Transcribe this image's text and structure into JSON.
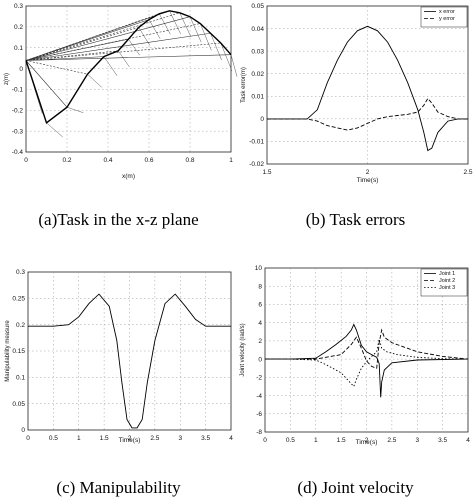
{
  "captions": {
    "a": "(a)Task in the x-z plane",
    "b": "(b) Task errors",
    "c": "(c) Manipulability",
    "d": "(d) Joint velocity"
  },
  "chart_data": [
    {
      "id": "a",
      "type": "line",
      "title": "",
      "xlabel": "x(m)",
      "ylabel": "z(m)",
      "xlim": [
        0,
        1
      ],
      "ylim": [
        -0.45,
        0.3
      ],
      "xticks": [
        "0",
        "0.2",
        "0.4",
        "0.6",
        "0.8",
        "1"
      ],
      "yticks": [
        "0.3",
        "0.2",
        "0.1",
        "0",
        "-0.1",
        "-0.2",
        "-0.3",
        "-0.4"
      ],
      "grid": true,
      "series": [
        {
          "values_x": [
            0,
            0.1,
            0.2,
            0.3,
            0.38,
            0.45,
            0.5,
            0.55,
            0.6,
            0.65,
            0.7,
            0.75,
            0.8,
            0.85,
            0.9,
            0.95,
            1.0
          ],
          "values_y": [
            0.02,
            -0.3,
            -0.22,
            -0.05,
            0.04,
            0.07,
            0.13,
            0.19,
            0.23,
            0.26,
            0.275,
            0.265,
            0.245,
            0.21,
            0.16,
            0.11,
            0.05
          ]
        }
      ]
    },
    {
      "id": "b",
      "type": "line",
      "title": "",
      "xlabel": "Time(s)",
      "ylabel": "Task error(m)",
      "xlim": [
        1.5,
        2.5
      ],
      "ylim": [
        -0.02,
        0.05
      ],
      "xticks": [
        "1.5",
        "2",
        "2.5"
      ],
      "yticks": [
        "0.05",
        "0.04",
        "0.03",
        "0.02",
        "0.01",
        "0",
        "-0.01",
        "-0.02"
      ],
      "grid": true,
      "legend": "top-right",
      "series": [
        {
          "name": "x error",
          "x": [
            1.5,
            1.7,
            1.75,
            1.8,
            1.85,
            1.9,
            1.95,
            2.0,
            2.05,
            2.1,
            2.15,
            2.2,
            2.25,
            2.28,
            2.3,
            2.32,
            2.35,
            2.4,
            2.45,
            2.5
          ],
          "y": [
            0,
            0,
            0.004,
            0.016,
            0.026,
            0.034,
            0.039,
            0.041,
            0.039,
            0.034,
            0.026,
            0.016,
            0.004,
            -0.006,
            -0.014,
            -0.013,
            -0.006,
            -0.001,
            0,
            0
          ]
        },
        {
          "name": "y error",
          "x": [
            1.5,
            1.7,
            1.75,
            1.8,
            1.85,
            1.9,
            1.95,
            2.0,
            2.05,
            2.1,
            2.15,
            2.2,
            2.25,
            2.28,
            2.3,
            2.32,
            2.35,
            2.4,
            2.45,
            2.5
          ],
          "y": [
            0,
            0,
            -0.001,
            -0.003,
            -0.004,
            -0.005,
            -0.004,
            -0.002,
            0,
            0.001,
            0.0015,
            0.002,
            0.003,
            0.006,
            0.009,
            0.007,
            0.003,
            0.001,
            0,
            0
          ]
        }
      ]
    },
    {
      "id": "c",
      "type": "line",
      "title": "",
      "xlabel": "Time(s)",
      "ylabel": "Manipulability measure",
      "xlim": [
        0,
        4
      ],
      "ylim": [
        0,
        0.3
      ],
      "xticks": [
        "0",
        "0.5",
        "1",
        "1.5",
        "2",
        "2.5",
        "3",
        "3.5",
        "4"
      ],
      "yticks": [
        "0.3",
        "0.25",
        "0.2",
        "0.15",
        "0.1",
        "0.05",
        "0"
      ],
      "grid": true,
      "series": [
        {
          "x": [
            0,
            0.5,
            0.8,
            1.0,
            1.2,
            1.4,
            1.6,
            1.75,
            1.85,
            1.95,
            2.05,
            2.15,
            2.25,
            2.35,
            2.5,
            2.7,
            2.9,
            3.1,
            3.3,
            3.5,
            4.0
          ],
          "y": [
            0.197,
            0.197,
            0.2,
            0.215,
            0.24,
            0.258,
            0.235,
            0.17,
            0.09,
            0.02,
            0.004,
            0.004,
            0.02,
            0.09,
            0.17,
            0.24,
            0.258,
            0.235,
            0.21,
            0.197,
            0.197
          ]
        }
      ]
    },
    {
      "id": "d",
      "type": "line",
      "title": "",
      "xlabel": "Time(s)",
      "ylabel": "Joint velocity (rad/s)",
      "xlim": [
        0,
        4
      ],
      "ylim": [
        -8,
        10
      ],
      "xticks": [
        "0",
        "0.5",
        "1",
        "1.5",
        "2",
        "2.5",
        "3",
        "3.5",
        "4"
      ],
      "yticks": [
        "10",
        "8",
        "6",
        "4",
        "2",
        "0",
        "-2",
        "-4",
        "-6",
        "-8"
      ],
      "grid": true,
      "legend": "top-right",
      "series": [
        {
          "name": "Joint 1",
          "x": [
            0,
            0.5,
            1.0,
            1.2,
            1.4,
            1.6,
            1.7,
            1.75,
            1.8,
            1.9,
            2.0,
            2.1,
            2.2,
            2.25,
            2.28,
            2.3,
            2.35,
            2.5,
            3.0,
            4.0
          ],
          "y": [
            0,
            0,
            0.1,
            0.8,
            1.6,
            2.5,
            3.2,
            3.8,
            3.2,
            1.5,
            0.8,
            0.5,
            0.2,
            -0.5,
            -4.2,
            -2.5,
            -1.2,
            -0.4,
            -0.1,
            0
          ]
        },
        {
          "name": "Joint 2",
          "x": [
            0,
            0.5,
            1.0,
            1.5,
            1.7,
            1.8,
            1.9,
            2.0,
            2.1,
            2.2,
            2.25,
            2.3,
            2.35,
            2.5,
            3.0,
            3.5,
            4.0
          ],
          "y": [
            0,
            0,
            0,
            0.5,
            1.6,
            2.4,
            1.2,
            -0.2,
            -0.8,
            -1.0,
            1.8,
            3.2,
            2.4,
            1.8,
            0.8,
            0.3,
            0
          ]
        },
        {
          "name": "Joint 3",
          "x": [
            0,
            0.5,
            1.0,
            1.2,
            1.5,
            1.65,
            1.75,
            1.8,
            1.9,
            2.0,
            2.1,
            2.2,
            2.25,
            2.3,
            2.4,
            2.6,
            3.0,
            3.5,
            4.0
          ],
          "y": [
            0,
            0,
            -0.1,
            -0.6,
            -1.5,
            -2.4,
            -3.0,
            -2.2,
            -1.0,
            -0.3,
            0.3,
            0.8,
            2.2,
            1.2,
            0.8,
            0.5,
            0.2,
            0.05,
            0
          ]
        }
      ]
    }
  ]
}
